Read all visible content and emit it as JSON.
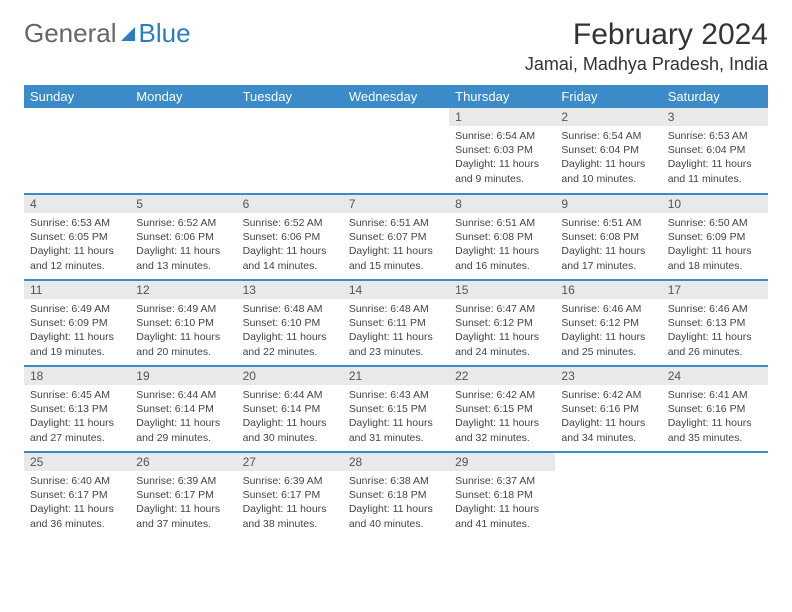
{
  "brand": {
    "part1": "General",
    "part2": "Blue"
  },
  "title": {
    "month": "February 2024",
    "location": "Jamai, Madhya Pradesh, India"
  },
  "colors": {
    "header_bg": "#3b8bc8",
    "header_text": "#ffffff",
    "daynum_bg": "#e9e9e9",
    "row_border": "#3b8bc8",
    "brand_blue": "#2d7cc0",
    "text": "#333333"
  },
  "weekdays": [
    "Sunday",
    "Monday",
    "Tuesday",
    "Wednesday",
    "Thursday",
    "Friday",
    "Saturday"
  ],
  "weeks": [
    [
      {
        "num": "",
        "sunrise": "",
        "sunset": "",
        "daylight": ""
      },
      {
        "num": "",
        "sunrise": "",
        "sunset": "",
        "daylight": ""
      },
      {
        "num": "",
        "sunrise": "",
        "sunset": "",
        "daylight": ""
      },
      {
        "num": "",
        "sunrise": "",
        "sunset": "",
        "daylight": ""
      },
      {
        "num": "1",
        "sunrise": "Sunrise: 6:54 AM",
        "sunset": "Sunset: 6:03 PM",
        "daylight": "Daylight: 11 hours and 9 minutes."
      },
      {
        "num": "2",
        "sunrise": "Sunrise: 6:54 AM",
        "sunset": "Sunset: 6:04 PM",
        "daylight": "Daylight: 11 hours and 10 minutes."
      },
      {
        "num": "3",
        "sunrise": "Sunrise: 6:53 AM",
        "sunset": "Sunset: 6:04 PM",
        "daylight": "Daylight: 11 hours and 11 minutes."
      }
    ],
    [
      {
        "num": "4",
        "sunrise": "Sunrise: 6:53 AM",
        "sunset": "Sunset: 6:05 PM",
        "daylight": "Daylight: 11 hours and 12 minutes."
      },
      {
        "num": "5",
        "sunrise": "Sunrise: 6:52 AM",
        "sunset": "Sunset: 6:06 PM",
        "daylight": "Daylight: 11 hours and 13 minutes."
      },
      {
        "num": "6",
        "sunrise": "Sunrise: 6:52 AM",
        "sunset": "Sunset: 6:06 PM",
        "daylight": "Daylight: 11 hours and 14 minutes."
      },
      {
        "num": "7",
        "sunrise": "Sunrise: 6:51 AM",
        "sunset": "Sunset: 6:07 PM",
        "daylight": "Daylight: 11 hours and 15 minutes."
      },
      {
        "num": "8",
        "sunrise": "Sunrise: 6:51 AM",
        "sunset": "Sunset: 6:08 PM",
        "daylight": "Daylight: 11 hours and 16 minutes."
      },
      {
        "num": "9",
        "sunrise": "Sunrise: 6:51 AM",
        "sunset": "Sunset: 6:08 PM",
        "daylight": "Daylight: 11 hours and 17 minutes."
      },
      {
        "num": "10",
        "sunrise": "Sunrise: 6:50 AM",
        "sunset": "Sunset: 6:09 PM",
        "daylight": "Daylight: 11 hours and 18 minutes."
      }
    ],
    [
      {
        "num": "11",
        "sunrise": "Sunrise: 6:49 AM",
        "sunset": "Sunset: 6:09 PM",
        "daylight": "Daylight: 11 hours and 19 minutes."
      },
      {
        "num": "12",
        "sunrise": "Sunrise: 6:49 AM",
        "sunset": "Sunset: 6:10 PM",
        "daylight": "Daylight: 11 hours and 20 minutes."
      },
      {
        "num": "13",
        "sunrise": "Sunrise: 6:48 AM",
        "sunset": "Sunset: 6:10 PM",
        "daylight": "Daylight: 11 hours and 22 minutes."
      },
      {
        "num": "14",
        "sunrise": "Sunrise: 6:48 AM",
        "sunset": "Sunset: 6:11 PM",
        "daylight": "Daylight: 11 hours and 23 minutes."
      },
      {
        "num": "15",
        "sunrise": "Sunrise: 6:47 AM",
        "sunset": "Sunset: 6:12 PM",
        "daylight": "Daylight: 11 hours and 24 minutes."
      },
      {
        "num": "16",
        "sunrise": "Sunrise: 6:46 AM",
        "sunset": "Sunset: 6:12 PM",
        "daylight": "Daylight: 11 hours and 25 minutes."
      },
      {
        "num": "17",
        "sunrise": "Sunrise: 6:46 AM",
        "sunset": "Sunset: 6:13 PM",
        "daylight": "Daylight: 11 hours and 26 minutes."
      }
    ],
    [
      {
        "num": "18",
        "sunrise": "Sunrise: 6:45 AM",
        "sunset": "Sunset: 6:13 PM",
        "daylight": "Daylight: 11 hours and 27 minutes."
      },
      {
        "num": "19",
        "sunrise": "Sunrise: 6:44 AM",
        "sunset": "Sunset: 6:14 PM",
        "daylight": "Daylight: 11 hours and 29 minutes."
      },
      {
        "num": "20",
        "sunrise": "Sunrise: 6:44 AM",
        "sunset": "Sunset: 6:14 PM",
        "daylight": "Daylight: 11 hours and 30 minutes."
      },
      {
        "num": "21",
        "sunrise": "Sunrise: 6:43 AM",
        "sunset": "Sunset: 6:15 PM",
        "daylight": "Daylight: 11 hours and 31 minutes."
      },
      {
        "num": "22",
        "sunrise": "Sunrise: 6:42 AM",
        "sunset": "Sunset: 6:15 PM",
        "daylight": "Daylight: 11 hours and 32 minutes."
      },
      {
        "num": "23",
        "sunrise": "Sunrise: 6:42 AM",
        "sunset": "Sunset: 6:16 PM",
        "daylight": "Daylight: 11 hours and 34 minutes."
      },
      {
        "num": "24",
        "sunrise": "Sunrise: 6:41 AM",
        "sunset": "Sunset: 6:16 PM",
        "daylight": "Daylight: 11 hours and 35 minutes."
      }
    ],
    [
      {
        "num": "25",
        "sunrise": "Sunrise: 6:40 AM",
        "sunset": "Sunset: 6:17 PM",
        "daylight": "Daylight: 11 hours and 36 minutes."
      },
      {
        "num": "26",
        "sunrise": "Sunrise: 6:39 AM",
        "sunset": "Sunset: 6:17 PM",
        "daylight": "Daylight: 11 hours and 37 minutes."
      },
      {
        "num": "27",
        "sunrise": "Sunrise: 6:39 AM",
        "sunset": "Sunset: 6:17 PM",
        "daylight": "Daylight: 11 hours and 38 minutes."
      },
      {
        "num": "28",
        "sunrise": "Sunrise: 6:38 AM",
        "sunset": "Sunset: 6:18 PM",
        "daylight": "Daylight: 11 hours and 40 minutes."
      },
      {
        "num": "29",
        "sunrise": "Sunrise: 6:37 AM",
        "sunset": "Sunset: 6:18 PM",
        "daylight": "Daylight: 11 hours and 41 minutes."
      },
      {
        "num": "",
        "sunrise": "",
        "sunset": "",
        "daylight": ""
      },
      {
        "num": "",
        "sunrise": "",
        "sunset": "",
        "daylight": ""
      }
    ]
  ]
}
